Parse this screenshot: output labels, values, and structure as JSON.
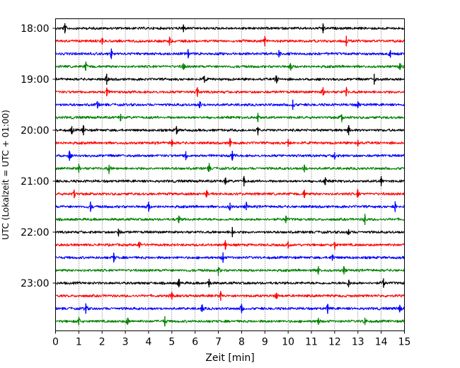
{
  "chart_data": {
    "type": "line",
    "xlabel": "Zeit  [min]",
    "ylabel": "UTC (Lokalzeit = UTC + 01:00)",
    "xlim": [
      0,
      15
    ],
    "x_ticks": [
      0,
      1,
      2,
      3,
      4,
      5,
      6,
      7,
      8,
      9,
      10,
      11,
      12,
      13,
      14,
      15
    ],
    "x_grid": "dotted vertical at every minute",
    "y_tick_labels": [
      "18:00",
      "19:00",
      "20:00",
      "21:00",
      "22:00",
      "23:00"
    ],
    "trace_colors": [
      "#000000",
      "#ff0000",
      "#0000ff",
      "#008000"
    ],
    "trace_color_cycle": "black, red, blue, green",
    "traces_start": "18:00",
    "trace_interval_min": 15,
    "trace_count": 24,
    "traces": [
      {
        "start": "18:00",
        "color": "black",
        "spikes_min": [
          0.4,
          5.5,
          11.5
        ]
      },
      {
        "start": "18:15",
        "color": "red",
        "spikes_min": [
          2.0,
          4.9,
          9.0,
          12.5
        ]
      },
      {
        "start": "18:30",
        "color": "blue",
        "spikes_min": [
          2.4,
          5.7,
          9.6,
          14.4
        ]
      },
      {
        "start": "18:45",
        "color": "green",
        "spikes_min": [
          1.3,
          5.5,
          10.1,
          14.8
        ]
      },
      {
        "start": "19:00",
        "color": "black",
        "spikes_min": [
          2.2,
          6.4,
          9.5,
          13.7
        ]
      },
      {
        "start": "19:15",
        "color": "red",
        "spikes_min": [
          2.2,
          6.1,
          11.5,
          12.5
        ]
      },
      {
        "start": "19:30",
        "color": "blue",
        "spikes_min": [
          1.8,
          6.2,
          10.2,
          13.0
        ]
      },
      {
        "start": "19:45",
        "color": "green",
        "spikes_min": [
          2.8,
          8.7,
          12.3
        ]
      },
      {
        "start": "20:00",
        "color": "black",
        "spikes_min": [
          0.7,
          1.2,
          5.2,
          8.7,
          12.6
        ]
      },
      {
        "start": "20:15",
        "color": "red",
        "spikes_min": [
          5.0,
          7.5,
          10.0,
          13.0
        ]
      },
      {
        "start": "20:30",
        "color": "blue",
        "spikes_min": [
          0.6,
          5.6,
          7.6,
          12.0
        ]
      },
      {
        "start": "20:45",
        "color": "green",
        "spikes_min": [
          1.0,
          2.3,
          6.6,
          10.7
        ]
      },
      {
        "start": "21:00",
        "color": "black",
        "spikes_min": [
          7.3,
          8.1,
          11.6,
          14.0
        ]
      },
      {
        "start": "21:15",
        "color": "red",
        "spikes_min": [
          0.8,
          6.5,
          10.7,
          13.0
        ]
      },
      {
        "start": "21:30",
        "color": "blue",
        "spikes_min": [
          1.5,
          4.0,
          7.5,
          8.2,
          14.6
        ]
      },
      {
        "start": "21:45",
        "color": "green",
        "spikes_min": [
          5.3,
          9.9,
          13.3
        ]
      },
      {
        "start": "22:00",
        "color": "black",
        "spikes_min": [
          2.7,
          7.6,
          12.6
        ]
      },
      {
        "start": "22:15",
        "color": "red",
        "spikes_min": [
          3.6,
          7.3,
          10.0,
          12.0
        ]
      },
      {
        "start": "22:30",
        "color": "blue",
        "spikes_min": [
          2.5,
          7.2,
          11.9
        ]
      },
      {
        "start": "22:45",
        "color": "green",
        "spikes_min": [
          7.0,
          11.3,
          12.4
        ]
      },
      {
        "start": "23:00",
        "color": "black",
        "spikes_min": [
          5.3,
          6.6,
          12.6,
          14.1
        ]
      },
      {
        "start": "23:15",
        "color": "red",
        "spikes_min": [
          5.0,
          7.1,
          9.5
        ]
      },
      {
        "start": "23:30",
        "color": "blue",
        "spikes_min": [
          1.3,
          6.3,
          8.0,
          11.7,
          14.8
        ]
      },
      {
        "start": "23:45",
        "color": "green",
        "spikes_min": [
          1.0,
          3.1,
          4.7,
          11.3,
          13.3
        ]
      }
    ]
  }
}
